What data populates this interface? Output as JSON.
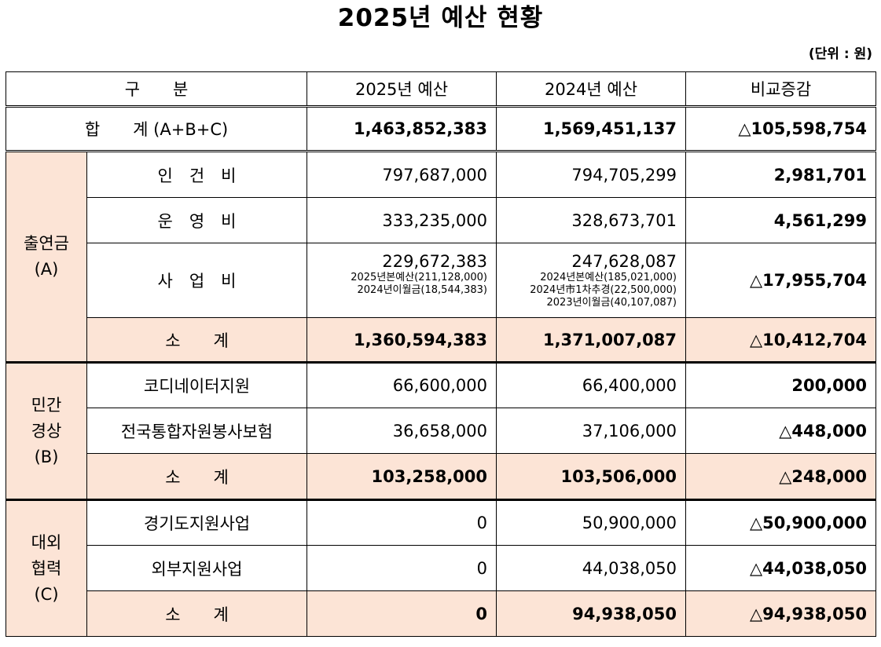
{
  "title": "2025년 예산 현황",
  "unit_note": "(단위 : 원)",
  "headers": {
    "category": "구　　분",
    "budget_2025": "2025년 예산",
    "budget_2024": "2024년 예산",
    "diff": "비교증감"
  },
  "total": {
    "label": "합　　계 (A+B+C)",
    "budget_2025": "1,463,852,383",
    "budget_2024": "1,569,451,137",
    "diff": "△105,598,754"
  },
  "groupA": {
    "name_line1": "출연금",
    "name_line2": "(A)",
    "rows": [
      {
        "label": "인　건　비",
        "budget_2025": "797,687,000",
        "budget_2024": "794,705,299",
        "diff": "2,981,701"
      },
      {
        "label": "운　영　비",
        "budget_2025": "333,235,000",
        "budget_2024": "328,673,701",
        "diff": "4,561,299"
      }
    ],
    "project": {
      "label": "사　업　비",
      "budget_2025": "229,672,383",
      "budget_2025_notes": [
        "2025년본예산(211,128,000)",
        "2024년이월금(18,544,383)"
      ],
      "budget_2024": "247,628,087",
      "budget_2024_notes": [
        "2024년본예산(185,021,000)",
        "2024년市1차추경(22,500,000)",
        "2023년이월금(40,107,087)"
      ],
      "diff": "△17,955,704"
    },
    "subtotal": {
      "label": "소　　계",
      "budget_2025": "1,360,594,383",
      "budget_2024": "1,371,007,087",
      "diff": "△10,412,704"
    }
  },
  "groupB": {
    "name_line1": "민간",
    "name_line2": "경상",
    "name_line3": "(B)",
    "rows": [
      {
        "label": "코디네이터지원",
        "budget_2025": "66,600,000",
        "budget_2024": "66,400,000",
        "diff": "200,000"
      },
      {
        "label": "전국통합자원봉사보험",
        "budget_2025": "36,658,000",
        "budget_2024": "37,106,000",
        "diff": "△448,000"
      }
    ],
    "subtotal": {
      "label": "소　　계",
      "budget_2025": "103,258,000",
      "budget_2024": "103,506,000",
      "diff": "△248,000"
    }
  },
  "groupC": {
    "name_line1": "대외",
    "name_line2": "협력",
    "name_line3": "(C)",
    "rows": [
      {
        "label": "경기도지원사업",
        "budget_2025": "0",
        "budget_2024": "50,900,000",
        "diff": "△50,900,000"
      },
      {
        "label": "외부지원사업",
        "budget_2025": "0",
        "budget_2024": "44,038,050",
        "diff": "△44,038,050"
      }
    ],
    "subtotal": {
      "label": "소　　계",
      "budget_2025": "0",
      "budget_2024": "94,938,050",
      "diff": "△94,938,050"
    }
  }
}
